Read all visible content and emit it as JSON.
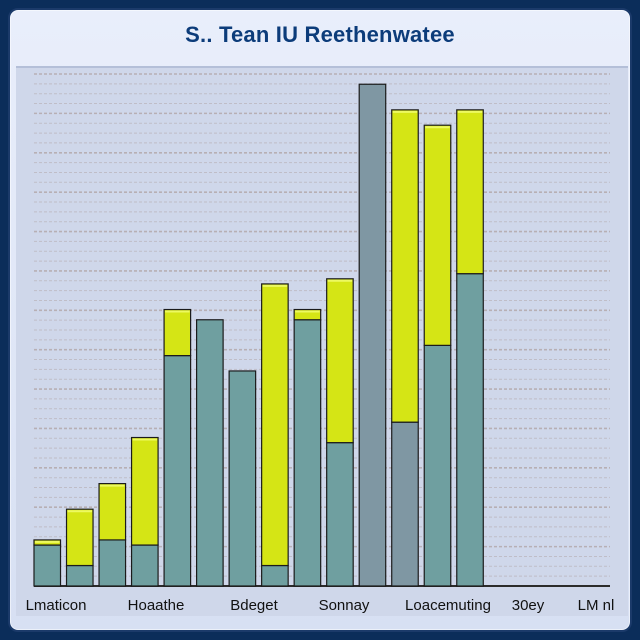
{
  "title": "S.. Tean IU Reethenwatee",
  "chart_data": {
    "type": "bar",
    "categories": [
      "Lmaticon",
      "Hoaathe",
      "Bdeget",
      "Sonnay",
      "Loacemuting",
      "30ey",
      "LM nl"
    ],
    "ylim": [
      0,
      100
    ],
    "grid": true,
    "bars": [
      {
        "base": 8,
        "top": 9
      },
      {
        "base": 4,
        "top": 15
      },
      {
        "base": 9,
        "top": 20
      },
      {
        "base": 8,
        "top": 29
      },
      {
        "base": 45,
        "top": 54
      },
      {
        "base": 52,
        "top": 52
      },
      {
        "base": 42,
        "top": 42
      },
      {
        "base": 4,
        "top": 59
      },
      {
        "base": 52,
        "top": 54
      },
      {
        "base": 28,
        "top": 60
      },
      {
        "base": 98,
        "top": 98
      },
      {
        "base": 32,
        "top": 93
      },
      {
        "base": 47,
        "top": 90
      },
      {
        "base": 61,
        "top": 93
      }
    ],
    "colors": {
      "teal": "#6f9fa0",
      "lime": "#d5e515",
      "slate": "#7f97a3",
      "grid": "#b3a9ab"
    }
  }
}
